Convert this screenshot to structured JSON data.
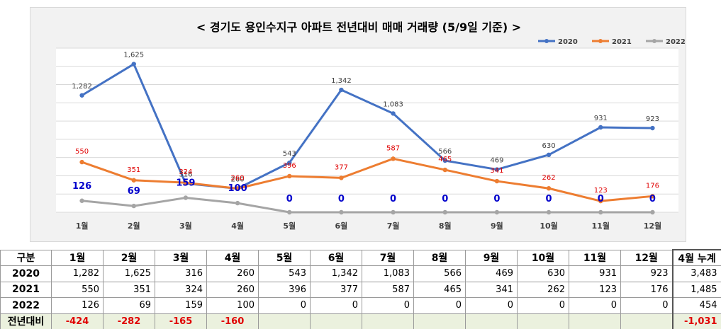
{
  "chart_data": {
    "type": "line",
    "title": "< 경기도 용인수지구 아파트 전년대비 매매 거래량 (5/9일 기준) >",
    "categories": [
      "1월",
      "2월",
      "3월",
      "4월",
      "5월",
      "6월",
      "7월",
      "8월",
      "9월",
      "10월",
      "11월",
      "12월"
    ],
    "series": [
      {
        "name": "2020",
        "color": "#4472c4",
        "label_color": "#404040",
        "values": [
          1282,
          1625,
          316,
          260,
          543,
          1342,
          1083,
          566,
          469,
          630,
          931,
          923
        ],
        "labels": [
          "1,282",
          "1,625",
          "316",
          "260",
          "543",
          "1,342",
          "1,083",
          "566",
          "469",
          "630",
          "931",
          "923"
        ]
      },
      {
        "name": "2021",
        "color": "#ed7d31",
        "label_color": "#e00000",
        "values": [
          550,
          351,
          324,
          260,
          396,
          377,
          587,
          465,
          341,
          262,
          123,
          176
        ],
        "labels": [
          "550",
          "351",
          "324",
          "260",
          "396",
          "377",
          "587",
          "465",
          "341",
          "262",
          "123",
          "176"
        ]
      },
      {
        "name": "2022",
        "color": "#a5a5a5",
        "label_color": "#0000cc",
        "values": [
          126,
          69,
          159,
          100,
          0,
          0,
          0,
          0,
          0,
          0,
          0,
          0
        ],
        "labels": [
          "126",
          "69",
          "159",
          "100",
          "0",
          "0",
          "0",
          "0",
          "0",
          "0",
          "0",
          "0"
        ]
      }
    ],
    "ylim": [
      0,
      1800
    ],
    "grid": true,
    "legend": "top-right"
  },
  "table": {
    "header": [
      "구분",
      "1월",
      "2월",
      "3월",
      "4월",
      "5월",
      "6월",
      "7월",
      "8월",
      "9월",
      "10월",
      "11월",
      "12월",
      "4월 누계"
    ],
    "rows": [
      {
        "label": "2020",
        "values": [
          "1,282",
          "1,625",
          "316",
          "260",
          "543",
          "1,342",
          "1,083",
          "566",
          "469",
          "630",
          "931",
          "923",
          "3,483"
        ]
      },
      {
        "label": "2021",
        "values": [
          "550",
          "351",
          "324",
          "260",
          "396",
          "377",
          "587",
          "465",
          "341",
          "262",
          "123",
          "176",
          "1,485"
        ]
      },
      {
        "label": "2022",
        "values": [
          "126",
          "69",
          "159",
          "100",
          "0",
          "0",
          "0",
          "0",
          "0",
          "0",
          "0",
          "0",
          "454"
        ]
      },
      {
        "label": "전년대비",
        "values": [
          "-424",
          "-282",
          "-165",
          "-160",
          "",
          "",
          "",
          "",
          "",
          "",
          "",
          "",
          "-1,031"
        ]
      }
    ]
  }
}
